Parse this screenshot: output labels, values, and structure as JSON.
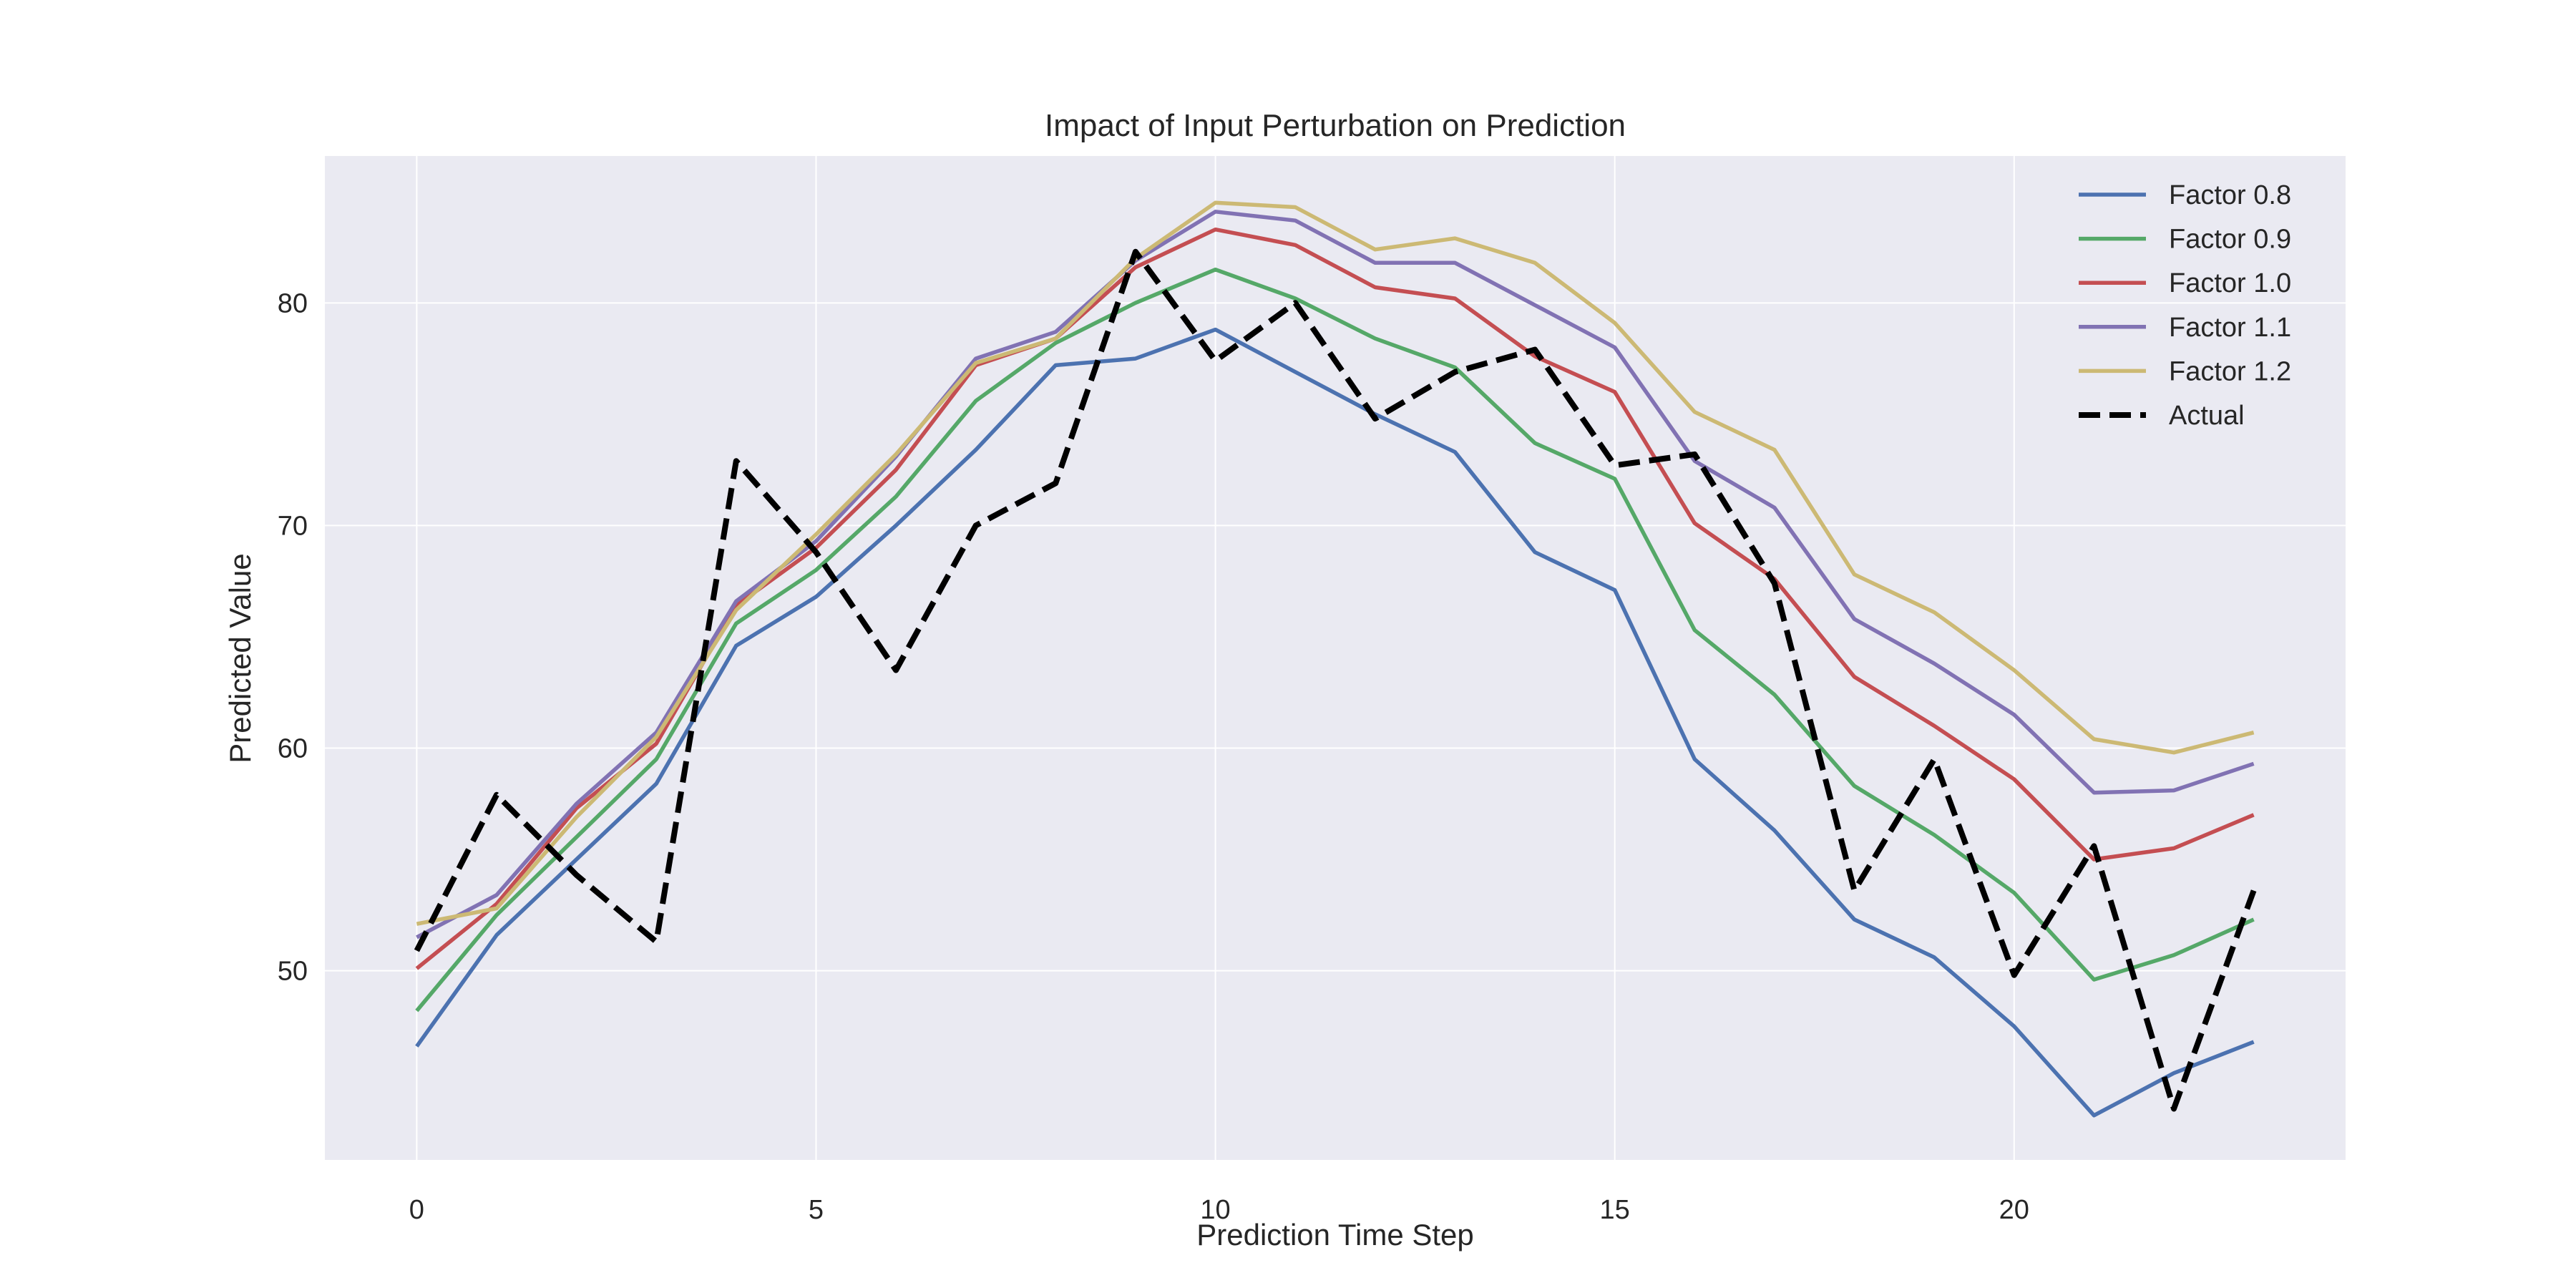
{
  "chart_data": {
    "type": "line",
    "title": "Impact of Input Perturbation on Prediction",
    "xlabel": "Prediction Time Step",
    "ylabel": "Predicted Value",
    "xlim": [
      -1.15,
      24.15
    ],
    "ylim": [
      41.5,
      86.6
    ],
    "xticks": [
      0,
      5,
      10,
      15,
      20
    ],
    "yticks": [
      50,
      60,
      70,
      80
    ],
    "grid": true,
    "legend_position": "top-right",
    "x": [
      0,
      1,
      2,
      3,
      4,
      5,
      6,
      7,
      8,
      9,
      10,
      11,
      12,
      13,
      14,
      15,
      16,
      17,
      18,
      19,
      20,
      21,
      22,
      23
    ],
    "series": [
      {
        "name": "Factor 0.8",
        "color": "#4c72b0",
        "style": "solid",
        "values": [
          46.6,
          51.6,
          55.0,
          58.4,
          64.6,
          66.8,
          70.0,
          73.4,
          77.2,
          77.5,
          78.8,
          76.9,
          75.0,
          73.3,
          68.8,
          67.1,
          59.5,
          56.3,
          52.3,
          50.6,
          47.5,
          43.5,
          45.4,
          46.8
        ]
      },
      {
        "name": "Factor 0.9",
        "color": "#55a868",
        "style": "solid",
        "values": [
          48.2,
          52.5,
          56.0,
          59.5,
          65.6,
          68.0,
          71.3,
          75.6,
          78.2,
          80.0,
          81.5,
          80.2,
          78.4,
          77.1,
          73.7,
          72.1,
          65.3,
          62.4,
          58.3,
          56.1,
          53.5,
          49.6,
          50.7,
          52.3
        ]
      },
      {
        "name": "Factor 1.0",
        "color": "#c44e52",
        "style": "solid",
        "values": [
          50.1,
          53.0,
          57.3,
          60.2,
          66.4,
          69.0,
          72.5,
          77.2,
          78.4,
          81.6,
          83.3,
          82.6,
          80.7,
          80.2,
          77.6,
          76.0,
          70.1,
          67.6,
          63.2,
          61.0,
          58.6,
          55.0,
          55.5,
          57.0
        ]
      },
      {
        "name": "Factor 1.1",
        "color": "#8172b3",
        "style": "solid",
        "values": [
          51.5,
          53.4,
          57.5,
          60.7,
          66.6,
          69.3,
          73.1,
          77.5,
          78.7,
          81.9,
          84.1,
          83.7,
          81.8,
          81.8,
          79.9,
          78.0,
          72.9,
          70.8,
          65.8,
          63.8,
          61.5,
          58.0,
          58.1,
          59.3
        ]
      },
      {
        "name": "Factor 1.2",
        "color": "#ccb974",
        "style": "solid",
        "values": [
          52.1,
          52.8,
          56.9,
          60.5,
          66.2,
          69.6,
          73.2,
          77.3,
          78.4,
          82.0,
          84.5,
          84.3,
          82.4,
          82.9,
          81.8,
          79.1,
          75.1,
          73.4,
          67.8,
          66.1,
          63.5,
          60.4,
          59.8,
          60.7
        ]
      },
      {
        "name": "Actual",
        "color": "#000000",
        "style": "dashed",
        "values": [
          50.9,
          57.9,
          54.3,
          51.3,
          72.9,
          68.8,
          63.5,
          70.0,
          71.9,
          82.3,
          77.4,
          80.0,
          74.8,
          76.9,
          77.9,
          72.7,
          73.2,
          67.4,
          53.6,
          59.5,
          49.8,
          55.6,
          43.8,
          53.6
        ]
      }
    ]
  }
}
